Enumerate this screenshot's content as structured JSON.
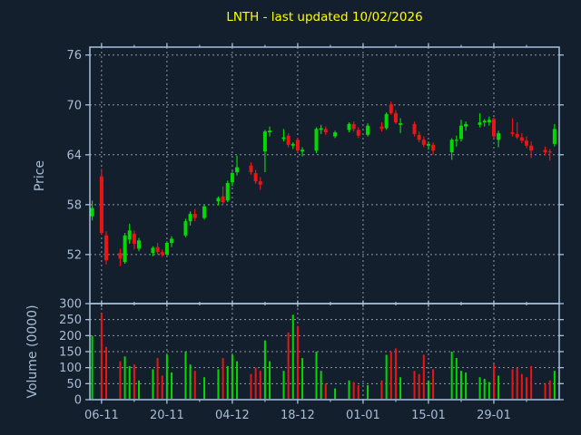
{
  "title": {
    "text": "LNTH - last updated 10/02/2026"
  },
  "colors": {
    "background": "#131f2d",
    "spine": "#a8c2e0",
    "grid": "#8f99a3",
    "tick_label": "#a9bdd6",
    "title": "#ffff00",
    "up": "#00d900",
    "down": "#ea1515"
  },
  "chart_data": {
    "type": "candlestick",
    "symbol": "LNTH",
    "title": "LNTH - last updated 10/02/2026",
    "legend": "none",
    "price_panel": {
      "ylabel": "Price",
      "yticks": [
        52,
        58,
        64,
        70,
        76
      ],
      "ylim": [
        46.1,
        76.95
      ],
      "grid": true
    },
    "volume_panel": {
      "ylabel": "Volume (0000)",
      "yticks": [
        0,
        50,
        100,
        150,
        200,
        250,
        300
      ],
      "ylim": [
        0,
        300
      ],
      "grid": true
    },
    "x_axis": {
      "start": "2025-11-03T12:00:00Z",
      "end": "2026-02-12T00:00:00Z",
      "major_ticks": [
        {
          "date": "2025-11-06",
          "label": "06-11"
        },
        {
          "date": "2025-11-20",
          "label": "20-11"
        },
        {
          "date": "2025-12-04",
          "label": "04-12"
        },
        {
          "date": "2025-12-18",
          "label": "18-12"
        },
        {
          "date": "2026-01-01",
          "label": "01-01"
        },
        {
          "date": "2026-01-15",
          "label": "15-01"
        },
        {
          "date": "2026-01-29",
          "label": "29-01"
        }
      ],
      "minor_ticks": [
        "2025-11-13",
        "2025-11-27",
        "2025-12-11",
        "2025-12-25",
        "2026-01-08",
        "2026-01-22",
        "2026-02-05"
      ]
    },
    "columns": [
      "date",
      "open",
      "high",
      "low",
      "close",
      "volume_0000"
    ],
    "candles": [
      [
        "2025-11-04",
        56.6,
        58.5,
        56.1,
        57.6,
        200
      ],
      [
        "2025-11-06",
        61.4,
        62.3,
        54.4,
        54.6,
        270
      ],
      [
        "2025-11-07",
        54.3,
        54.8,
        50.8,
        51.3,
        165
      ],
      [
        "2025-11-10",
        52.2,
        52.7,
        50.6,
        51.5,
        120
      ],
      [
        "2025-11-11",
        51.1,
        54.6,
        50.9,
        54.3,
        135
      ],
      [
        "2025-11-12",
        53.8,
        55.7,
        53.3,
        54.9,
        105
      ],
      [
        "2025-11-13",
        54.5,
        54.9,
        52.6,
        53.3,
        110
      ],
      [
        "2025-11-14",
        52.7,
        54.0,
        52.4,
        53.7,
        60
      ],
      [
        "2025-11-17",
        52.2,
        53.0,
        51.8,
        52.8,
        95
      ],
      [
        "2025-11-18",
        52.9,
        53.4,
        52.0,
        52.3,
        130
      ],
      [
        "2025-11-19",
        52.3,
        52.6,
        51.7,
        52.0,
        75
      ],
      [
        "2025-11-20",
        52.0,
        53.6,
        51.9,
        53.4,
        140
      ],
      [
        "2025-11-21",
        53.4,
        54.2,
        52.9,
        53.9,
        85
      ],
      [
        "2025-11-24",
        54.3,
        56.3,
        54.1,
        56.0,
        150
      ],
      [
        "2025-11-25",
        56.0,
        57.2,
        55.5,
        56.9,
        110
      ],
      [
        "2025-11-26",
        56.9,
        57.5,
        56.0,
        56.4,
        90
      ],
      [
        "2025-11-28",
        56.4,
        58.0,
        56.2,
        57.8,
        70
      ],
      [
        "2025-12-01",
        58.4,
        59.0,
        57.9,
        58.8,
        95
      ],
      [
        "2025-12-02",
        59.0,
        60.2,
        58.1,
        58.3,
        130
      ],
      [
        "2025-12-03",
        58.5,
        60.9,
        58.3,
        60.6,
        105
      ],
      [
        "2025-12-04",
        60.7,
        62.0,
        60.2,
        61.8,
        140
      ],
      [
        "2025-12-05",
        61.9,
        63.9,
        61.5,
        62.5,
        120
      ],
      [
        "2025-12-08",
        62.7,
        63.1,
        61.6,
        61.9,
        80
      ],
      [
        "2025-12-09",
        61.8,
        62.2,
        60.5,
        60.8,
        100
      ],
      [
        "2025-12-10",
        60.8,
        61.3,
        59.8,
        60.4,
        90
      ],
      [
        "2025-12-11",
        64.4,
        67.0,
        61.9,
        66.8,
        185
      ],
      [
        "2025-12-12",
        66.7,
        67.4,
        66.2,
        66.9,
        120
      ],
      [
        "2025-12-15",
        65.9,
        67.1,
        65.6,
        66.1,
        90
      ],
      [
        "2025-12-16",
        66.3,
        66.6,
        64.9,
        65.2,
        210
      ],
      [
        "2025-12-17",
        65.1,
        65.5,
        64.7,
        65.3,
        265
      ],
      [
        "2025-12-18",
        65.8,
        66.0,
        64.3,
        64.5,
        230
      ],
      [
        "2025-12-19",
        64.4,
        64.9,
        63.8,
        64.6,
        130
      ],
      [
        "2025-12-22",
        64.5,
        67.3,
        64.2,
        67.1,
        150
      ],
      [
        "2025-12-23",
        67.0,
        67.6,
        66.5,
        67.2,
        90
      ],
      [
        "2025-12-24",
        67.1,
        67.4,
        66.4,
        66.7,
        50
      ],
      [
        "2025-12-26",
        66.2,
        66.9,
        66.0,
        66.7,
        35
      ],
      [
        "2025-12-29",
        67.0,
        67.9,
        66.7,
        67.7,
        60
      ],
      [
        "2025-12-30",
        67.7,
        68.0,
        66.8,
        67.1,
        55
      ],
      [
        "2025-12-31",
        67.0,
        67.3,
        66.0,
        66.3,
        45
      ],
      [
        "2026-01-02",
        66.4,
        67.8,
        66.2,
        67.5,
        45
      ],
      [
        "2026-01-05",
        67.4,
        67.9,
        66.8,
        67.1,
        60
      ],
      [
        "2026-01-06",
        67.2,
        69.1,
        67.0,
        68.9,
        140
      ],
      [
        "2026-01-07",
        70.1,
        70.4,
        68.8,
        69.0,
        150
      ],
      [
        "2026-01-08",
        69.0,
        69.4,
        67.7,
        67.9,
        160
      ],
      [
        "2026-01-09",
        67.6,
        68.4,
        66.6,
        67.8,
        70
      ],
      [
        "2026-01-12",
        67.7,
        68.0,
        66.2,
        66.5,
        90
      ],
      [
        "2026-01-13",
        66.4,
        66.8,
        65.5,
        65.8,
        80
      ],
      [
        "2026-01-14",
        65.8,
        66.2,
        64.9,
        65.2,
        140
      ],
      [
        "2026-01-15",
        65.1,
        65.6,
        64.6,
        65.3,
        60
      ],
      [
        "2026-01-16",
        65.2,
        65.5,
        64.0,
        64.5,
        95
      ],
      [
        "2026-01-20",
        64.3,
        66.0,
        63.4,
        65.8,
        150
      ],
      [
        "2026-01-21",
        65.7,
        66.3,
        65.0,
        65.8,
        130
      ],
      [
        "2026-01-22",
        65.9,
        68.2,
        65.6,
        67.5,
        90
      ],
      [
        "2026-01-23",
        67.4,
        68.0,
        66.9,
        67.7,
        85
      ],
      [
        "2026-01-26",
        67.6,
        69.0,
        67.3,
        67.9,
        70
      ],
      [
        "2026-01-27",
        67.9,
        68.3,
        67.4,
        68.1,
        65
      ],
      [
        "2026-01-28",
        67.9,
        68.6,
        67.5,
        68.2,
        55
      ],
      [
        "2026-01-29",
        68.3,
        68.5,
        66.0,
        66.2,
        110
      ],
      [
        "2026-01-30",
        65.8,
        66.9,
        64.9,
        66.6,
        75
      ],
      [
        "2026-02-02",
        66.7,
        68.4,
        66.2,
        66.5,
        95
      ],
      [
        "2026-02-03",
        66.5,
        67.9,
        65.9,
        66.1,
        100
      ],
      [
        "2026-02-04",
        66.1,
        66.6,
        65.4,
        65.7,
        80
      ],
      [
        "2026-02-05",
        65.7,
        66.2,
        64.8,
        65.1,
        70
      ],
      [
        "2026-02-06",
        65.1,
        65.6,
        63.6,
        64.5,
        105
      ],
      [
        "2026-02-09",
        64.6,
        65.0,
        63.9,
        64.3,
        50
      ],
      [
        "2026-02-10",
        64.4,
        64.7,
        63.3,
        64.3,
        60
      ],
      [
        "2026-02-11",
        65.3,
        67.7,
        65.0,
        67.1,
        90
      ]
    ]
  }
}
